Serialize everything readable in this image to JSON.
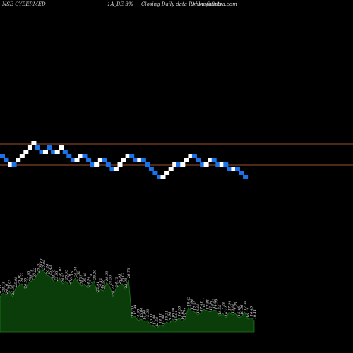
{
  "header": {
    "ticker": "NSE CYBERMED",
    "series": "1A_BE 3%~",
    "caption": "Closing Daily data Renko charts",
    "source": "MunafaSutra.com"
  },
  "chart_data": {
    "type": "renko",
    "title": "NSE CYBERMED",
    "colors": {
      "up_brick": "#ffffff",
      "down_brick": "#1a73e8",
      "reference_line": "#a0522d",
      "volume_fill": "#0a3d0a",
      "volume_line": "#1f7a1f",
      "background": "#000000"
    },
    "grid": false,
    "reference_lines": [
      1,
      2
    ],
    "bricks": [
      {
        "dir": "down",
        "level": 0
      },
      {
        "dir": "down",
        "level": 1
      },
      {
        "dir": "up",
        "level": 2
      },
      {
        "dir": "down",
        "level": 2
      },
      {
        "dir": "up",
        "level": 1
      },
      {
        "dir": "up",
        "level": 0
      },
      {
        "dir": "up",
        "level": -1
      },
      {
        "dir": "up",
        "level": -2
      },
      {
        "dir": "up",
        "level": -3
      },
      {
        "dir": "down",
        "level": -2
      },
      {
        "dir": "down",
        "level": -1
      },
      {
        "dir": "up",
        "level": -1
      },
      {
        "dir": "down",
        "level": -2
      },
      {
        "dir": "down",
        "level": -1
      },
      {
        "dir": "up",
        "level": -1
      },
      {
        "dir": "up",
        "level": -2
      },
      {
        "dir": "down",
        "level": -1
      },
      {
        "dir": "down",
        "level": 0
      },
      {
        "dir": "down",
        "level": 1
      },
      {
        "dir": "up",
        "level": 1
      },
      {
        "dir": "up",
        "level": 0
      },
      {
        "dir": "down",
        "level": 0
      },
      {
        "dir": "down",
        "level": 1
      },
      {
        "dir": "down",
        "level": 2
      },
      {
        "dir": "up",
        "level": 2
      },
      {
        "dir": "up",
        "level": 1
      },
      {
        "dir": "down",
        "level": 1
      },
      {
        "dir": "down",
        "level": 2
      },
      {
        "dir": "down",
        "level": 3
      },
      {
        "dir": "up",
        "level": 3
      },
      {
        "dir": "up",
        "level": 2
      },
      {
        "dir": "up",
        "level": 1
      },
      {
        "dir": "up",
        "level": 0
      },
      {
        "dir": "down",
        "level": 0
      },
      {
        "dir": "down",
        "level": 1
      },
      {
        "dir": "up",
        "level": 1
      },
      {
        "dir": "down",
        "level": 1
      },
      {
        "dir": "down",
        "level": 2
      },
      {
        "dir": "down",
        "level": 3
      },
      {
        "dir": "down",
        "level": 4
      },
      {
        "dir": "down",
        "level": 5
      },
      {
        "dir": "up",
        "level": 5
      },
      {
        "dir": "up",
        "level": 4
      },
      {
        "dir": "up",
        "level": 3
      },
      {
        "dir": "up",
        "level": 2
      },
      {
        "dir": "down",
        "level": 2
      },
      {
        "dir": "up",
        "level": 2
      },
      {
        "dir": "up",
        "level": 1
      },
      {
        "dir": "up",
        "level": 0
      },
      {
        "dir": "down",
        "level": 0
      },
      {
        "dir": "down",
        "level": 1
      },
      {
        "dir": "down",
        "level": 2
      },
      {
        "dir": "up",
        "level": 2
      },
      {
        "dir": "up",
        "level": 1
      },
      {
        "dir": "down",
        "level": 1
      },
      {
        "dir": "down",
        "level": 2
      },
      {
        "dir": "up",
        "level": 2
      },
      {
        "dir": "down",
        "level": 2
      },
      {
        "dir": "down",
        "level": 3
      },
      {
        "dir": "up",
        "level": 3
      },
      {
        "dir": "down",
        "level": 3
      },
      {
        "dir": "down",
        "level": 4
      },
      {
        "dir": "down",
        "level": 5
      }
    ],
    "volume_labels": [
      "26.55",
      "24.18",
      "24.16",
      "23.93",
      "25.05",
      "25.98",
      "26.16",
      "24.72",
      "26.55",
      "25.85",
      "24.18",
      "27.22",
      "28.30",
      "28.61",
      "27.06",
      "26.28",
      "25.43",
      "24.10",
      "23.95",
      "26.02",
      "24.85",
      "25.53",
      "24.76",
      "25.16",
      "26.34",
      "25.62",
      "24.85",
      "25.40",
      "24.94",
      "25.18",
      "26.20",
      "22.91",
      "24.12",
      "23.50",
      "26.00",
      "24.50",
      "20.72",
      "24.12",
      "24.95",
      "25.02",
      "23.98",
      "26.73",
      "16.50",
      "15.99",
      "14.98",
      "15.04",
      "14.90",
      "15.00",
      "13.11",
      "12.80",
      "12.50",
      "14.11",
      "13.80",
      "15.31",
      "14.98",
      "16.46",
      "15.04",
      "16.58",
      "14.62",
      "15.22",
      "18.42",
      "17.94",
      "17.55",
      "16.88",
      "17.41",
      "18.11",
      "17.81",
      "17.54",
      "17.93",
      "17.79",
      "16.56",
      "17.24",
      "16.32",
      "17.54",
      "16.98",
      "17.25",
      "16.46",
      "16.56",
      "17.34",
      "16.12",
      "16.45",
      "16.11"
    ],
    "volume_levels": [
      0.5,
      0.55,
      0.52,
      0.58,
      0.5,
      0.62,
      0.65,
      0.68,
      0.6,
      0.7,
      0.72,
      0.75,
      0.82,
      0.88,
      0.86,
      0.8,
      0.78,
      0.72,
      0.7,
      0.76,
      0.68,
      0.72,
      0.66,
      0.7,
      0.76,
      0.7,
      0.65,
      0.68,
      0.62,
      0.66,
      0.72,
      0.55,
      0.6,
      0.58,
      0.7,
      0.64,
      0.5,
      0.62,
      0.66,
      0.68,
      0.6,
      0.74,
      0.2,
      0.22,
      0.16,
      0.18,
      0.15,
      0.16,
      0.1,
      0.08,
      0.05,
      0.1,
      0.08,
      0.14,
      0.12,
      0.18,
      0.14,
      0.2,
      0.15,
      0.18,
      0.34,
      0.3,
      0.28,
      0.24,
      0.27,
      0.32,
      0.3,
      0.28,
      0.31,
      0.3,
      0.22,
      0.26,
      0.2,
      0.28,
      0.24,
      0.26,
      0.2,
      0.22,
      0.28,
      0.18,
      0.2,
      0.16
    ]
  }
}
